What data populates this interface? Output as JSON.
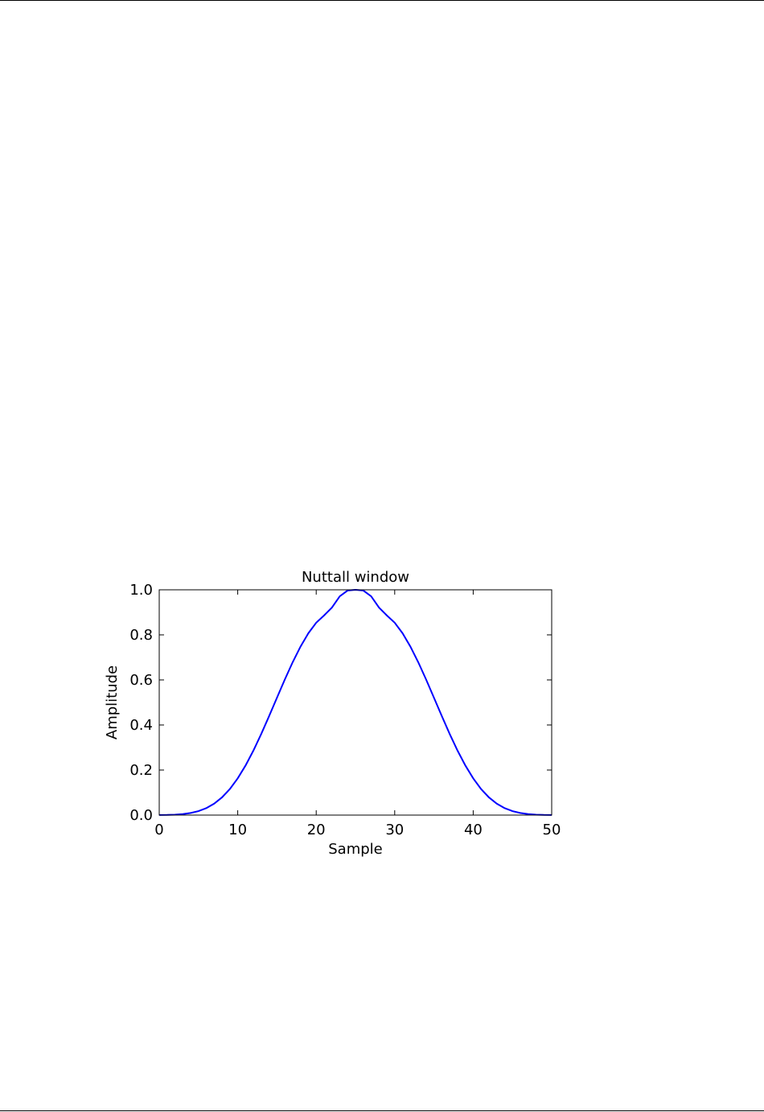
{
  "chart_data": {
    "type": "line",
    "title": "Nuttall window",
    "xlabel": "Sample",
    "ylabel": "Amplitude",
    "xlim": [
      0,
      50
    ],
    "ylim": [
      0.0,
      1.0
    ],
    "xticks": [
      0,
      10,
      20,
      30,
      40,
      50
    ],
    "yticks": [
      0.0,
      0.2,
      0.4,
      0.6,
      0.8,
      1.0
    ],
    "xtick_labels": [
      "0",
      "10",
      "20",
      "30",
      "40",
      "50"
    ],
    "ytick_labels": [
      "0.0",
      "0.2",
      "0.4",
      "0.6",
      "0.8",
      "1.0"
    ],
    "grid": false,
    "series": [
      {
        "color": "#0000ff",
        "x": [
          0,
          1,
          2,
          3,
          4,
          5,
          6,
          7,
          8,
          9,
          10,
          11,
          12,
          13,
          14,
          15,
          16,
          17,
          18,
          19,
          20,
          21,
          22,
          23,
          24,
          25,
          26,
          27,
          28,
          29,
          30,
          31,
          32,
          33,
          34,
          35,
          36,
          37,
          38,
          39,
          40,
          41,
          42,
          43,
          44,
          45,
          46,
          47,
          48,
          49,
          50
        ],
        "y": [
          0.0004,
          0.0008,
          0.002,
          0.0046,
          0.0094,
          0.0177,
          0.031,
          0.0508,
          0.0787,
          0.1159,
          0.1631,
          0.2203,
          0.2866,
          0.3605,
          0.4396,
          0.5211,
          0.6018,
          0.6785,
          0.7479,
          0.8072,
          0.8539,
          0.8862,
          0.9211,
          0.9712,
          0.9968,
          1.0,
          0.9968,
          0.9712,
          0.9211,
          0.8862,
          0.8539,
          0.8072,
          0.7479,
          0.6785,
          0.6018,
          0.5211,
          0.4396,
          0.3605,
          0.2866,
          0.2203,
          0.1631,
          0.1159,
          0.0787,
          0.0508,
          0.031,
          0.0177,
          0.0094,
          0.0046,
          0.002,
          0.0008,
          0.0004
        ]
      }
    ]
  }
}
